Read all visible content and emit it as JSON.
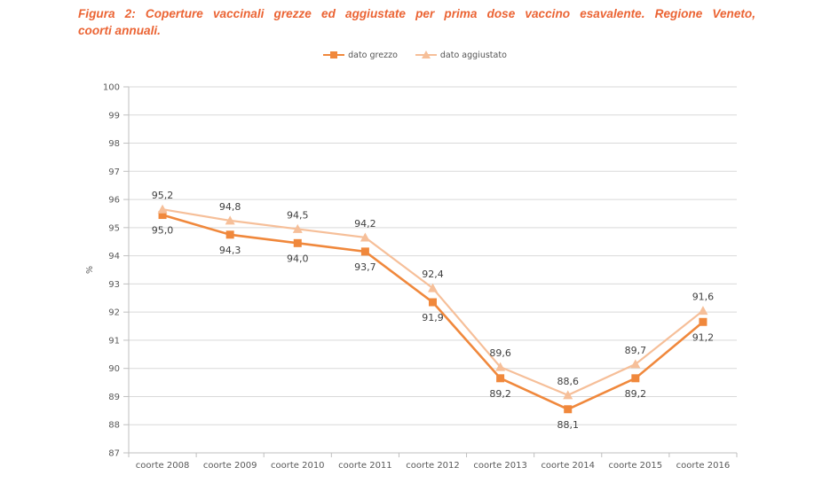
{
  "figure": {
    "title_line1": "Figura 2: Coperture vaccinali grezze ed aggiustate per prima dose vaccino esavalente. Regione Veneto,",
    "title_line2": "coorti annuali."
  },
  "legend": [
    {
      "label": "dato grezzo",
      "marker": "square-icon"
    },
    {
      "label": "dato aggiustato",
      "marker": "triangle-icon"
    }
  ],
  "chart_data": {
    "type": "line",
    "categories": [
      "coorte 2008",
      "coorte 2009",
      "coorte 2010",
      "coorte 2011",
      "coorte 2012",
      "coorte 2013",
      "coorte 2014",
      "coorte 2015",
      "coorte 2016"
    ],
    "series": [
      {
        "name": "dato grezzo",
        "marker": "square",
        "values": [
          95.0,
          94.3,
          94.0,
          93.7,
          91.9,
          89.2,
          88.1,
          89.2,
          91.2
        ],
        "labels": [
          "95,0",
          "94,3",
          "94,0",
          "93,7",
          "91,9",
          "89,2",
          "88,1",
          "89,2",
          "91,2"
        ],
        "label_position": "below"
      },
      {
        "name": "dato aggiustato",
        "marker": "triangle",
        "values": [
          95.2,
          94.8,
          94.5,
          94.2,
          92.4,
          89.6,
          88.6,
          89.7,
          91.6
        ],
        "labels": [
          "95,2",
          "94,8",
          "94,5",
          "94,2",
          "92,4",
          "89,6",
          "88,6",
          "89,7",
          "91,6"
        ],
        "label_position": "above"
      }
    ],
    "title": "",
    "xlabel": "",
    "ylabel": "%",
    "ylim": [
      87,
      100
    ],
    "ytick_step": 1,
    "yticks": [
      "87",
      "88",
      "89",
      "90",
      "91",
      "92",
      "93",
      "94",
      "95",
      "96",
      "97",
      "98",
      "99",
      "100"
    ],
    "grid": true,
    "legend_position": "top-center"
  },
  "colors": {
    "title": "#EB6434",
    "series_grezzo": "#F0883C",
    "series_aggiustato": "#F6BF99",
    "gridline": "#D9D9D9",
    "axis": "#BFBFBF",
    "axis_text": "#595959",
    "data_label_text": "#404040"
  }
}
